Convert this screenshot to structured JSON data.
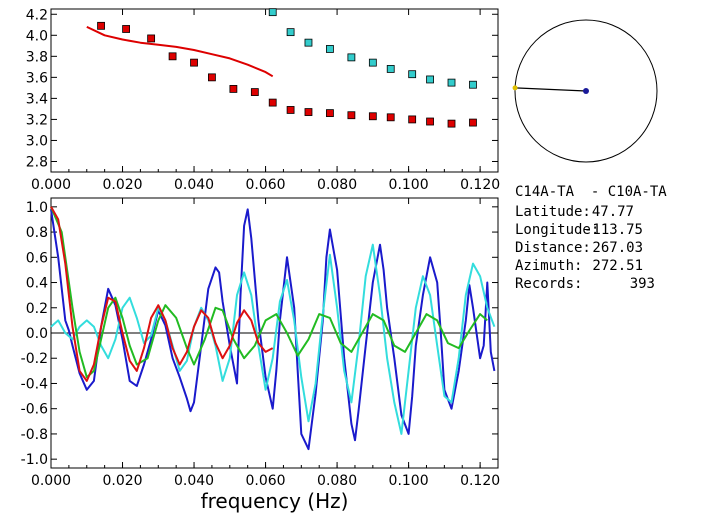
{
  "chart_data": [
    {
      "type": "scatter",
      "xlim": [
        0,
        0.125
      ],
      "ylim": [
        2.7,
        4.25
      ],
      "x_ticks": [
        "0.000",
        "0.020",
        "0.040",
        "0.060",
        "0.080",
        "0.100",
        "0.120"
      ],
      "y_ticks": [
        "2.8",
        "3.0",
        "3.2",
        "3.4",
        "3.6",
        "3.8",
        "4.0",
        "4.2"
      ],
      "series": [
        {
          "color": "#dd0000",
          "marker": "square",
          "x": [
            0.014,
            0.021,
            0.028,
            0.034,
            0.04,
            0.045,
            0.051,
            0.057,
            0.062,
            0.067,
            0.072,
            0.078,
            0.084,
            0.09,
            0.095,
            0.101,
            0.106,
            0.112,
            0.118
          ],
          "y": [
            4.09,
            4.06,
            3.97,
            3.8,
            3.74,
            3.6,
            3.49,
            3.46,
            3.36,
            3.29,
            3.27,
            3.26,
            3.24,
            3.23,
            3.22,
            3.2,
            3.18,
            3.16,
            3.17
          ]
        },
        {
          "color": "#33cccc",
          "marker": "square",
          "x": [
            0.062,
            0.067,
            0.072,
            0.078,
            0.084,
            0.09,
            0.095,
            0.101,
            0.106,
            0.112,
            0.118
          ],
          "y": [
            4.22,
            4.03,
            3.93,
            3.87,
            3.79,
            3.74,
            3.68,
            3.63,
            3.58,
            3.55,
            3.53
          ]
        },
        {
          "color": "#dd0000",
          "marker": "line",
          "x": [
            0.01,
            0.015,
            0.02,
            0.025,
            0.03,
            0.035,
            0.04,
            0.045,
            0.05,
            0.055,
            0.06,
            0.062
          ],
          "y": [
            4.08,
            4.0,
            3.96,
            3.93,
            3.91,
            3.89,
            3.86,
            3.82,
            3.78,
            3.72,
            3.65,
            3.61
          ]
        }
      ]
    },
    {
      "type": "line",
      "xlabel": "frequency (Hz)",
      "xlim": [
        0,
        0.125
      ],
      "ylim": [
        -1.07,
        1.07
      ],
      "x_ticks": [
        "0.000",
        "0.020",
        "0.040",
        "0.060",
        "0.080",
        "0.100",
        "0.120"
      ],
      "y_ticks": [
        "-1.0",
        "-0.8",
        "-0.6",
        "-0.4",
        "-0.2",
        "0.0",
        "0.2",
        "0.4",
        "0.6",
        "0.8",
        "1.0"
      ],
      "zero_line": true,
      "series": [
        {
          "color": "#1a1acc",
          "x": [
            0,
            0.002,
            0.004,
            0.005,
            0.006,
            0.008,
            0.01,
            0.012,
            0.014,
            0.016,
            0.018,
            0.02,
            0.022,
            0.024,
            0.026,
            0.028,
            0.03,
            0.032,
            0.034,
            0.036,
            0.038,
            0.039,
            0.04,
            0.042,
            0.044,
            0.046,
            0.047,
            0.048,
            0.05,
            0.052,
            0.053,
            0.054,
            0.055,
            0.056,
            0.058,
            0.06,
            0.062,
            0.063,
            0.064,
            0.066,
            0.068,
            0.069,
            0.07,
            0.072,
            0.074,
            0.076,
            0.077,
            0.078,
            0.08,
            0.082,
            0.084,
            0.085,
            0.086,
            0.088,
            0.09,
            0.092,
            0.093,
            0.094,
            0.096,
            0.098,
            0.1,
            0.101,
            0.102,
            0.104,
            0.106,
            0.108,
            0.109,
            0.11,
            0.112,
            0.114,
            0.116,
            0.117,
            0.118,
            0.12,
            0.121,
            0.122,
            0.123,
            0.124
          ],
          "y": [
            0.98,
            0.6,
            0.1,
            0.02,
            -0.1,
            -0.32,
            -0.45,
            -0.38,
            0.05,
            0.35,
            0.22,
            -0.05,
            -0.38,
            -0.42,
            -0.25,
            -0.05,
            0.18,
            0.06,
            -0.2,
            -0.35,
            -0.52,
            -0.62,
            -0.55,
            -0.1,
            0.35,
            0.52,
            0.48,
            0.25,
            -0.1,
            -0.4,
            0.3,
            0.85,
            0.98,
            0.75,
            0.1,
            -0.35,
            -0.6,
            -0.3,
            0.1,
            0.6,
            0.2,
            -0.3,
            -0.8,
            -0.92,
            -0.48,
            0.1,
            0.6,
            0.82,
            0.5,
            -0.2,
            -0.72,
            -0.85,
            -0.62,
            -0.1,
            0.4,
            0.7,
            0.5,
            0.2,
            -0.2,
            -0.65,
            -0.8,
            -0.5,
            -0.1,
            0.3,
            0.6,
            0.4,
            0.0,
            -0.45,
            -0.6,
            -0.3,
            0.1,
            0.38,
            0.2,
            -0.2,
            -0.1,
            0.4,
            -0.15,
            -0.3
          ]
        },
        {
          "color": "#33dddd",
          "x": [
            0,
            0.002,
            0.004,
            0.006,
            0.008,
            0.01,
            0.012,
            0.014,
            0.016,
            0.018,
            0.02,
            0.022,
            0.024,
            0.026,
            0.028,
            0.03,
            0.032,
            0.034,
            0.036,
            0.038,
            0.04,
            0.042,
            0.044,
            0.046,
            0.048,
            0.05,
            0.052,
            0.054,
            0.056,
            0.058,
            0.06,
            0.062,
            0.064,
            0.066,
            0.068,
            0.07,
            0.072,
            0.074,
            0.076,
            0.078,
            0.08,
            0.082,
            0.084,
            0.086,
            0.088,
            0.09,
            0.092,
            0.094,
            0.096,
            0.098,
            0.1,
            0.102,
            0.104,
            0.106,
            0.108,
            0.11,
            0.112,
            0.114,
            0.116,
            0.118,
            0.12,
            0.122,
            0.124
          ],
          "y": [
            0.05,
            0.1,
            0.0,
            -0.05,
            0.05,
            0.1,
            0.05,
            -0.1,
            -0.2,
            -0.05,
            0.2,
            0.28,
            0.12,
            -0.08,
            -0.02,
            0.2,
            0.1,
            -0.1,
            -0.3,
            -0.22,
            0.05,
            0.2,
            0.1,
            -0.1,
            -0.38,
            -0.2,
            0.3,
            0.48,
            0.3,
            -0.1,
            -0.45,
            -0.2,
            0.25,
            0.42,
            0.1,
            -0.35,
            -0.7,
            -0.4,
            0.15,
            0.62,
            0.2,
            -0.3,
            -0.55,
            -0.1,
            0.45,
            0.7,
            0.3,
            -0.2,
            -0.55,
            -0.8,
            -0.3,
            0.2,
            0.45,
            0.3,
            -0.1,
            -0.5,
            -0.55,
            -0.2,
            0.3,
            0.55,
            0.45,
            0.2,
            0.05
          ]
        },
        {
          "color": "#22bb22",
          "x": [
            0,
            0.003,
            0.006,
            0.008,
            0.01,
            0.012,
            0.014,
            0.016,
            0.018,
            0.02,
            0.022,
            0.024,
            0.027,
            0.03,
            0.032,
            0.035,
            0.038,
            0.04,
            0.043,
            0.046,
            0.048,
            0.051,
            0.054,
            0.057,
            0.06,
            0.063,
            0.066,
            0.069,
            0.072,
            0.075,
            0.078,
            0.081,
            0.084,
            0.087,
            0.09,
            0.093,
            0.096,
            0.099,
            0.102,
            0.105,
            0.108,
            0.111,
            0.114,
            0.117,
            0.12,
            0.122
          ],
          "y": [
            1.0,
            0.8,
            0.2,
            -0.15,
            -0.35,
            -0.3,
            -0.05,
            0.2,
            0.28,
            0.12,
            -0.1,
            -0.25,
            -0.2,
            0.1,
            0.22,
            0.12,
            -0.12,
            -0.25,
            -0.05,
            0.2,
            0.18,
            -0.05,
            -0.2,
            -0.1,
            0.1,
            0.15,
            0.0,
            -0.18,
            -0.05,
            0.15,
            0.12,
            -0.08,
            -0.15,
            0.0,
            0.15,
            0.1,
            -0.1,
            -0.15,
            0.0,
            0.15,
            0.1,
            -0.08,
            -0.12,
            0.02,
            0.15,
            0.1
          ]
        },
        {
          "color": "#dd1111",
          "x": [
            0,
            0.002,
            0.004,
            0.006,
            0.008,
            0.01,
            0.012,
            0.014,
            0.016,
            0.018,
            0.02,
            0.022,
            0.024,
            0.026,
            0.028,
            0.03,
            0.032,
            0.034,
            0.036,
            0.038,
            0.04,
            0.042,
            0.044,
            0.046,
            0.048,
            0.05,
            0.052,
            0.054,
            0.056,
            0.058,
            0.06,
            0.062
          ],
          "y": [
            1.0,
            0.9,
            0.55,
            0.05,
            -0.3,
            -0.38,
            -0.25,
            0.05,
            0.28,
            0.25,
            0.0,
            -0.22,
            -0.3,
            -0.12,
            0.12,
            0.22,
            0.1,
            -0.12,
            -0.25,
            -0.15,
            0.05,
            0.18,
            0.12,
            -0.08,
            -0.2,
            -0.1,
            0.08,
            0.18,
            0.1,
            -0.08,
            -0.15,
            -0.12
          ]
        }
      ]
    }
  ],
  "compass": {
    "azimuth_deg": 272.51,
    "ring_color": "#000000",
    "station_color": "#1a1a99",
    "end_color": "#e0c000"
  },
  "info": {
    "title": "C14A-TA  - C10A-TA",
    "rows": [
      {
        "label": "Latitude:",
        "value": "47.77"
      },
      {
        "label": "Longitude:",
        "value": "-113.75"
      },
      {
        "label": "Distance:",
        "value": "267.03"
      },
      {
        "label": "Azimuth:",
        "value": "272.51"
      },
      {
        "label": "Records:",
        "value": "393"
      }
    ]
  }
}
